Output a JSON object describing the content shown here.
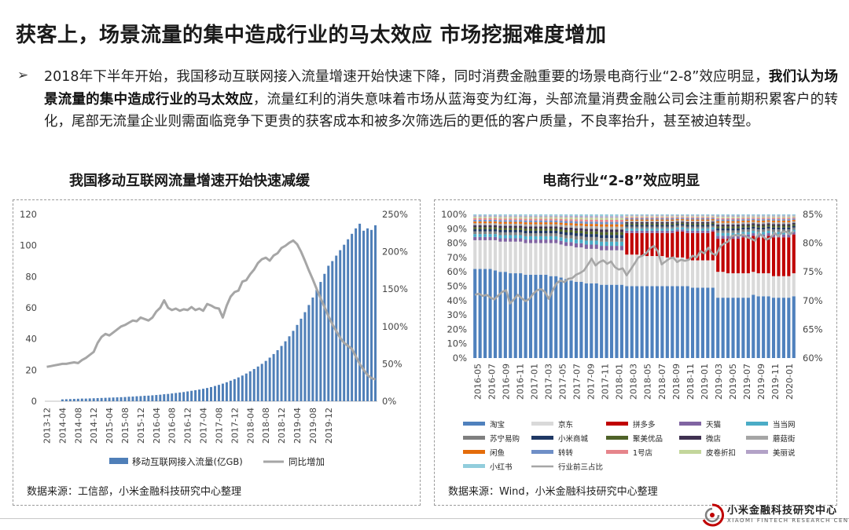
{
  "header": {
    "title": "获客上，场景流量的集中造成行业的马太效应 市场挖掘难度增加"
  },
  "paragraph": {
    "bullet": "➢",
    "part1": "2018年下半年开始，我国移动互联网接入流量增速开始快速下降，同时消费金融重要的场景电商行业“2-8”效应明显，",
    "bold": "我们认为场景流量的集中造成行业的马太效应",
    "part2": "，流量红利的消失意味着市场从蓝海变为红海，头部流量消费金融公司会注重前期积累客户的转化，尾部无流量企业则需面临竞争下更贵的获客成本和被多次筛选后的更低的客户质量，不良率抬升，甚至被迫转型。"
  },
  "left_panel": {
    "heading": "我国移动互联网流量增速开始快速减缓",
    "source": "数据来源：工信部，小米金融科技研究中心整理"
  },
  "right_panel": {
    "heading": "电商行业“2-8”效应明显",
    "source": "数据来源：Wind，小米金融科技研究中心整理"
  },
  "footer": {
    "logo_cn": "小米金融科技研究中心",
    "logo_en": "XIAOMI FINTECH RESEARCH CENTER"
  },
  "chart_data": [
    {
      "type": "bar+line",
      "title": "我国移动互联网流量增速开始快速减缓",
      "x_labels": [
        "2013-12",
        "2014-04",
        "2014-08",
        "2014-12",
        "2015-04",
        "2015-08",
        "2015-12",
        "2016-04",
        "2016-08",
        "2016-12",
        "2017-04",
        "2017-08",
        "2017-12",
        "2018-04",
        "2018-08",
        "2018-12",
        "2019-04",
        "2019-08",
        "2019-12"
      ],
      "x_start": "2013-12",
      "x_frequency": "monthly",
      "left_axis": {
        "ticks": [
          "0",
          "20",
          "40",
          "60",
          "80",
          "100",
          "120"
        ],
        "ylim": [
          0,
          120
        ]
      },
      "right_axis": {
        "ticks": [
          "0%",
          "50%",
          "100%",
          "150%",
          "200%",
          "250%"
        ],
        "ylim": [
          0,
          250
        ]
      },
      "series": [
        {
          "name": "移动互联网接入流量(亿GB)",
          "kind": "bar",
          "color": "#4f7fb8",
          "values": [
            1.2,
            1.3,
            1.4,
            1.5,
            1.6,
            1.7,
            1.7,
            1.8,
            1.9,
            2.0,
            2.1,
            2.2,
            2.3,
            2.4,
            2.5,
            2.6,
            2.7,
            2.9,
            3.0,
            3.2,
            3.3,
            3.5,
            3.6,
            3.8,
            4.0,
            4.2,
            4.5,
            4.7,
            5.0,
            5.3,
            5.6,
            5.9,
            6.3,
            6.7,
            7.1,
            7.5,
            8.0,
            8.5,
            9.1,
            9.8,
            10.5,
            11.3,
            12.2,
            13.2,
            14.2,
            15.3,
            16.5,
            17.8,
            19.2,
            20.7,
            22.3,
            24.0,
            25.9,
            28.0,
            30.3,
            32.8,
            35.5,
            38.5,
            41.7,
            45.2,
            49.0,
            53.0,
            57.2,
            61.8,
            66.6,
            71.5,
            76.6,
            81.8,
            87.0,
            90.0,
            93.5,
            97.0,
            100.5,
            104.0,
            107.5,
            111.0,
            114.0,
            109.5,
            111.0,
            110.0,
            113.0
          ]
        },
        {
          "name": "同比增加",
          "kind": "line",
          "color": "#a6a6a6",
          "values": [
            46,
            47,
            48,
            49,
            50,
            50,
            51,
            52,
            51,
            55,
            58,
            62,
            66,
            78,
            86,
            90,
            88,
            92,
            96,
            100,
            102,
            105,
            108,
            107,
            112,
            110,
            108,
            112,
            120,
            125,
            135,
            125,
            122,
            124,
            121,
            123,
            122,
            126,
            122,
            124,
            121,
            130,
            128,
            125,
            124,
            112,
            128,
            140,
            146,
            148,
            160,
            162,
            170,
            176,
            185,
            190,
            192,
            188,
            195,
            198,
            205,
            208,
            212,
            215,
            210,
            200,
            188,
            175,
            163,
            150,
            138,
            126,
            114,
            103,
            94,
            85,
            78,
            74,
            70,
            60,
            50,
            42,
            35,
            31,
            29
          ]
        }
      ]
    },
    {
      "type": "stacked bar+line",
      "title": "电商行业“2-8”效应明显",
      "x_labels": [
        "2016-05",
        "2016-07",
        "2016-09",
        "2016-11",
        "2017-01",
        "2017-03",
        "2017-05",
        "2017-07",
        "2017-09",
        "2017-11",
        "2018-01",
        "2018-03",
        "2018-05",
        "2018-07",
        "2018-09",
        "2018-11",
        "2019-01",
        "2019-03",
        "2019-05",
        "2019-07",
        "2019-09",
        "2019-11",
        "2020-01"
      ],
      "x_start": "2016-05",
      "x_frequency": "monthly",
      "left_axis": {
        "ticks": [
          "0%",
          "10%",
          "20%",
          "30%",
          "40%",
          "50%",
          "60%",
          "70%",
          "80%",
          "90%",
          "100%"
        ],
        "ylim": [
          0,
          100
        ]
      },
      "right_axis": {
        "ticks": [
          "60%",
          "65%",
          "70%",
          "75%",
          "80%",
          "85%"
        ],
        "ylim": [
          60,
          85
        ]
      },
      "categories_legend": [
        {
          "name": "淘宝",
          "color": "#4f81bd"
        },
        {
          "name": "京东",
          "color": "#d9d9d9"
        },
        {
          "name": "拼多多",
          "color": "#c00000"
        },
        {
          "name": "天猫",
          "color": "#8064a2"
        },
        {
          "name": "当当网",
          "color": "#4bacc6"
        },
        {
          "name": "苏宁易购",
          "color": "#7f7f7f"
        },
        {
          "name": "小米商城",
          "color": "#1f3864"
        },
        {
          "name": "聚美优品",
          "color": "#4f6228"
        },
        {
          "name": "微店",
          "color": "#3f3151"
        },
        {
          "name": "蘑菇街",
          "color": "#a5a5a5"
        },
        {
          "name": "闲鱼",
          "color": "#e46c0a"
        },
        {
          "name": "转转",
          "color": "#6f8fc7"
        },
        {
          "name": "1号店",
          "color": "#e6858b"
        },
        {
          "name": "皮卷折扣",
          "color": "#c3d69b"
        },
        {
          "name": "美丽说",
          "color": "#b3a2c7"
        },
        {
          "name": "小红书",
          "color": "#92cddc"
        }
      ],
      "line_series": {
        "name": "行业前三占比",
        "color": "#a6a6a6"
      },
      "taobao_share": [
        62,
        62,
        62,
        62,
        61,
        60,
        60,
        59,
        59,
        59,
        58,
        58,
        58,
        58,
        58,
        57,
        57,
        56,
        55,
        54,
        53,
        53,
        52,
        52,
        52,
        51,
        51,
        51,
        51,
        51,
        50,
        50,
        50,
        50,
        50,
        50,
        50,
        50,
        50,
        50,
        50,
        50,
        50,
        49,
        49,
        49,
        49,
        49,
        42,
        42,
        42,
        42,
        42,
        42,
        42,
        44,
        43,
        43,
        43,
        42,
        42,
        42,
        42,
        43
      ],
      "jd_share": [
        20,
        20,
        20,
        20,
        21,
        21,
        21,
        22,
        22,
        22,
        22,
        22,
        22,
        22,
        22,
        23,
        23,
        23,
        23,
        24,
        24,
        24,
        24,
        24,
        24,
        24,
        24,
        24,
        24,
        24,
        22,
        22,
        22,
        21,
        21,
        21,
        21,
        21,
        20,
        20,
        20,
        20,
        19,
        19,
        19,
        19,
        19,
        19,
        18,
        18,
        17,
        17,
        17,
        17,
        17,
        16,
        16,
        16,
        16,
        15,
        15,
        15,
        15,
        16
      ],
      "pdd_share": [
        0,
        0,
        0,
        0,
        0,
        0,
        0,
        0,
        0,
        0,
        0,
        0,
        0,
        0,
        0,
        0,
        0,
        0,
        0,
        0,
        0,
        0,
        0,
        0,
        0,
        0,
        0,
        0,
        0,
        0,
        15,
        15,
        15,
        16,
        16,
        16,
        16,
        16,
        17,
        17,
        18,
        18,
        18,
        19,
        19,
        19,
        19,
        20,
        23,
        23,
        24,
        24,
        24,
        25,
        25,
        25,
        25,
        25,
        26,
        27,
        27,
        27,
        27,
        27
      ],
      "top3_share": [
        71,
        71.2,
        70.8,
        71,
        70.5,
        70.2,
        70.9,
        71.5,
        71.8,
        69.5,
        70.2,
        71,
        70.4,
        69.9,
        70.3,
        71.2,
        71.8,
        72,
        71.5,
        70.3,
        71.8,
        73,
        73.5,
        73.2,
        73.8,
        73.9,
        74.5,
        74.8,
        75.2,
        76.2,
        77.3,
        76.1,
        76.7,
        77,
        76.4,
        76.8,
        75.8,
        75.4,
        75.6,
        74.4,
        75.4,
        76.4,
        77.5,
        77.8,
        78.2,
        79.1,
        79.5,
        78.6,
        76.3,
        76.8,
        77.3,
        77.5,
        76.7,
        77.1,
        76.9,
        77.1,
        77.8,
        77.5,
        78.6,
        78.2,
        79.2,
        78.2,
        77.9,
        79.3,
        79.9,
        80.2,
        81.2,
        81.4,
        81.3,
        81.5,
        81,
        80.8,
        80.4,
        81.7,
        81.2,
        80.6,
        80.9,
        81.8,
        81.2,
        81.9,
        82,
        81.5,
        82.1
      ]
    }
  ]
}
